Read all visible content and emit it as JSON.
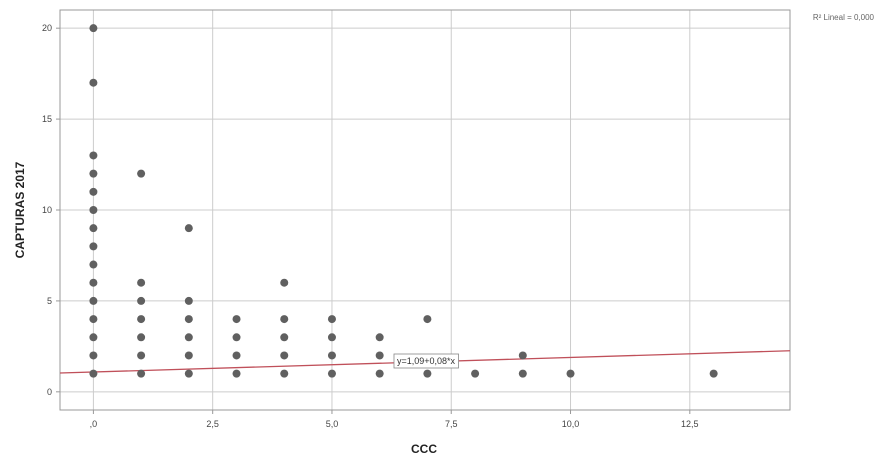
{
  "chart_data": {
    "type": "scatter",
    "xlabel": "CCC",
    "ylabel": "CAPTURAS 2017",
    "xlim": [
      -0.7,
      14.6
    ],
    "ylim": [
      -1,
      21
    ],
    "x_ticks": [
      0,
      2.5,
      5,
      7.5,
      10,
      12.5
    ],
    "x_tick_labels": [
      ",0",
      "2,5",
      "5,0",
      "7,5",
      "10,0",
      "12,5"
    ],
    "y_ticks": [
      0,
      5,
      10,
      15,
      20
    ],
    "y_tick_labels": [
      "0",
      "5",
      "10",
      "15",
      "20"
    ],
    "grid": true,
    "points": [
      [
        0,
        1
      ],
      [
        0,
        2
      ],
      [
        0,
        3
      ],
      [
        0,
        4
      ],
      [
        0,
        5
      ],
      [
        0,
        6
      ],
      [
        0,
        7
      ],
      [
        0,
        8
      ],
      [
        0,
        9
      ],
      [
        0,
        10
      ],
      [
        0,
        11
      ],
      [
        0,
        12
      ],
      [
        0,
        13
      ],
      [
        0,
        17
      ],
      [
        0,
        20
      ],
      [
        1,
        1
      ],
      [
        1,
        2
      ],
      [
        1,
        3
      ],
      [
        1,
        4
      ],
      [
        1,
        5
      ],
      [
        1,
        6
      ],
      [
        1,
        12
      ],
      [
        2,
        1
      ],
      [
        2,
        2
      ],
      [
        2,
        3
      ],
      [
        2,
        4
      ],
      [
        2,
        5
      ],
      [
        2,
        9
      ],
      [
        3,
        1
      ],
      [
        3,
        2
      ],
      [
        3,
        3
      ],
      [
        3,
        4
      ],
      [
        4,
        1
      ],
      [
        4,
        2
      ],
      [
        4,
        3
      ],
      [
        4,
        4
      ],
      [
        4,
        6
      ],
      [
        5,
        1
      ],
      [
        5,
        2
      ],
      [
        5,
        3
      ],
      [
        5,
        4
      ],
      [
        6,
        1
      ],
      [
        6,
        2
      ],
      [
        6,
        3
      ],
      [
        7,
        1
      ],
      [
        7,
        4
      ],
      [
        8,
        1
      ],
      [
        9,
        1
      ],
      [
        9,
        2
      ],
      [
        10,
        1
      ],
      [
        13,
        1
      ]
    ],
    "fit_line": {
      "intercept": 1.09,
      "slope": 0.08,
      "color": "#c0505a"
    },
    "fit_equation": "y=1,09+0,08*x",
    "fit_equation_anchor": {
      "x": 6.3,
      "y": 1.75
    },
    "legend_text": "R² Lineal = 0,000",
    "legend_position": "top-right",
    "point_color": "#606060"
  }
}
